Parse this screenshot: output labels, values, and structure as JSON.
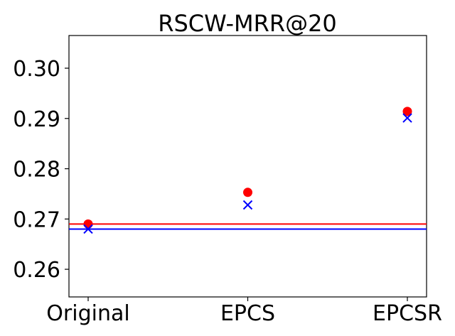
{
  "chart_data": {
    "type": "scatter",
    "title": "RSCW-MRR@20",
    "xlabel": "",
    "ylabel": "",
    "categories": [
      "Original",
      "EPCS",
      "EPCSR"
    ],
    "ylim": [
      0.2545,
      0.3065
    ],
    "yticks": [
      "0.26",
      "0.27",
      "0.28",
      "0.29",
      "0.30"
    ],
    "ytick_values": [
      0.26,
      0.27,
      0.28,
      0.29,
      0.3
    ],
    "grid": false,
    "series": [
      {
        "marker": "circle",
        "color": "#ff0000",
        "values": [
          0.269,
          0.2753,
          0.2914
        ],
        "hline": 0.269
      },
      {
        "marker": "x",
        "color": "#0000ff",
        "values": [
          0.268,
          0.2728,
          0.2901
        ],
        "hline": 0.268
      }
    ]
  }
}
